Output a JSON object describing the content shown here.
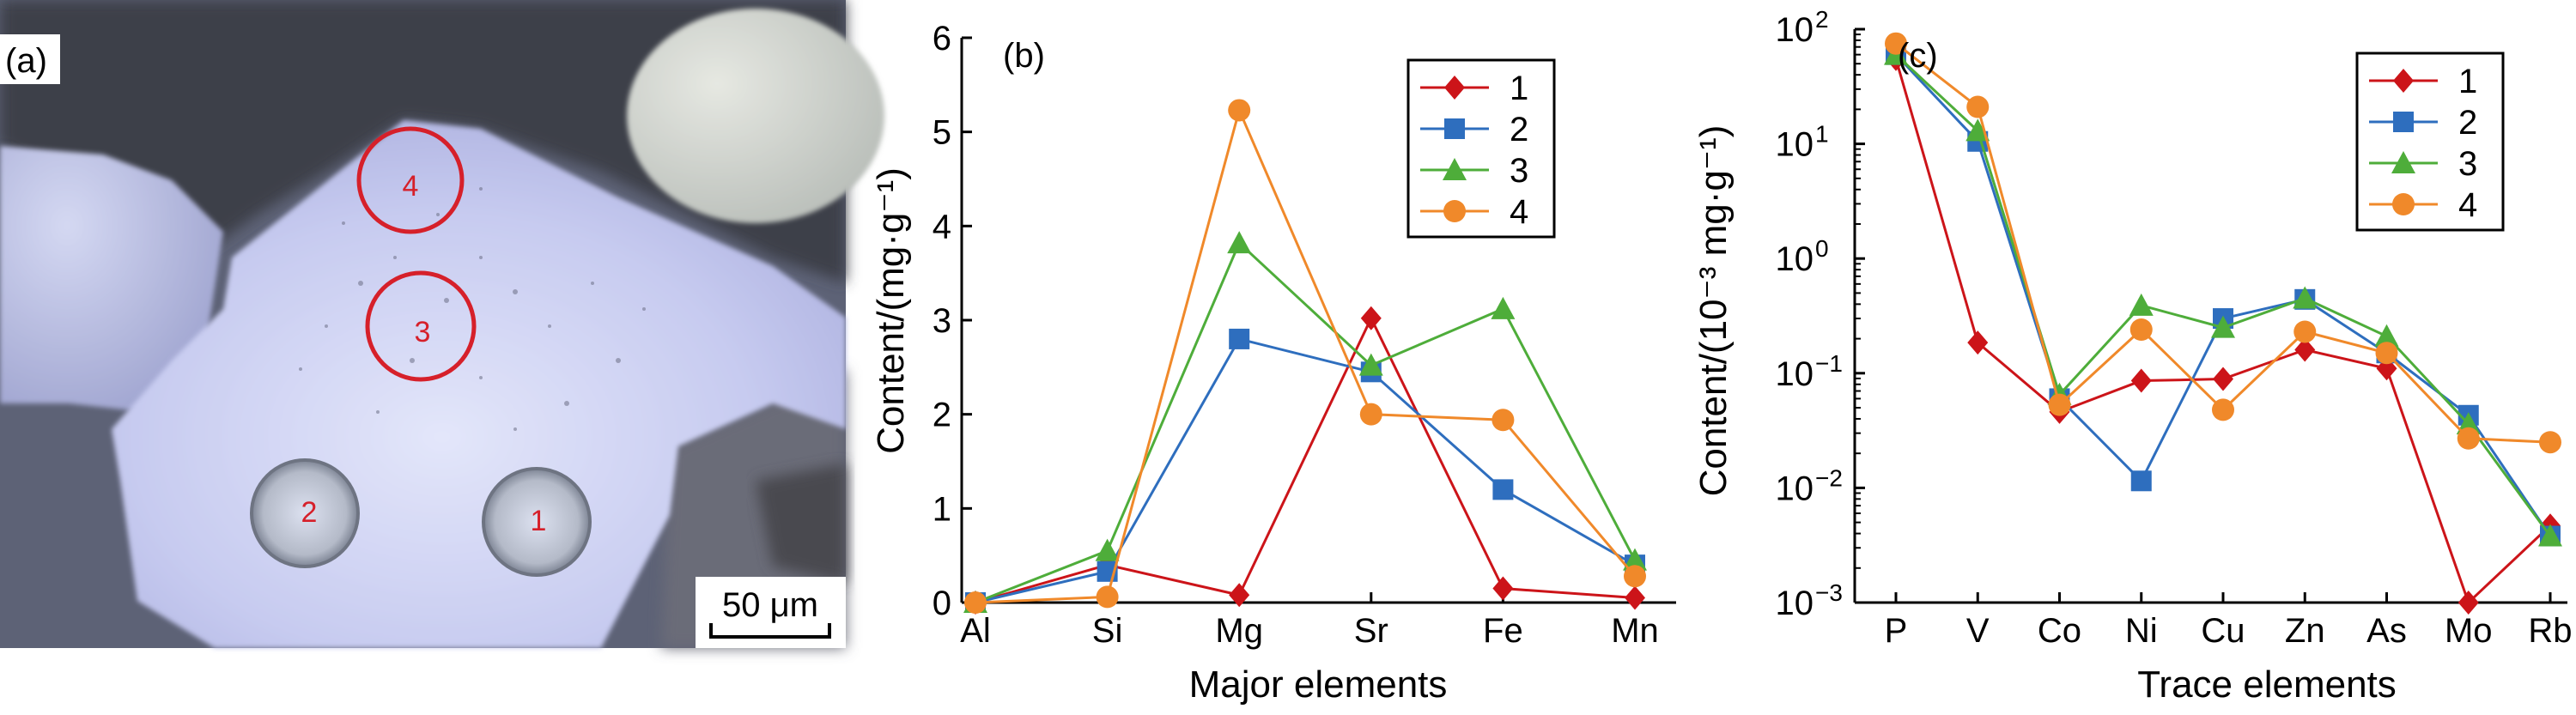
{
  "panel_a": {
    "label": "(a)",
    "scale_bar": "50 μm",
    "spot_labels": [
      "1",
      "2",
      "3",
      "4"
    ]
  },
  "chart_data": [
    {
      "panel": "(b)",
      "type": "line",
      "xlabel": "Major elements",
      "ylabel": "Content/(mg·g⁻¹)",
      "yscale": "linear",
      "ylim": [
        0,
        6
      ],
      "yticks": [
        0,
        1,
        2,
        3,
        4,
        5,
        6
      ],
      "ytick_labels": [
        "0",
        "1",
        "2",
        "3",
        "4",
        "5",
        "6"
      ],
      "categories": [
        "Al",
        "Si",
        "Mg",
        "Sr",
        "Fe",
        "Mn"
      ],
      "legend_position": "top-right",
      "series": [
        {
          "name": "1",
          "color": "#cc1419",
          "marker": "diamond",
          "values": [
            0.0,
            0.4,
            0.08,
            3.02,
            0.15,
            0.05
          ]
        },
        {
          "name": "2",
          "color": "#2e6ebe",
          "marker": "square",
          "values": [
            0.0,
            0.33,
            2.8,
            2.45,
            1.2,
            0.4
          ]
        },
        {
          "name": "3",
          "color": "#4ead3a",
          "marker": "triangle",
          "values": [
            0.0,
            0.55,
            3.82,
            2.52,
            3.12,
            0.45
          ]
        },
        {
          "name": "4",
          "color": "#f0892a",
          "marker": "circle",
          "values": [
            0.0,
            0.06,
            5.23,
            2.0,
            1.94,
            0.28
          ]
        }
      ]
    },
    {
      "panel": "(c)",
      "type": "line",
      "xlabel": "Trace elements",
      "ylabel": "Content/(10⁻³ mg·g⁻¹)",
      "yscale": "log",
      "ylim": [
        0.001,
        100
      ],
      "yticks": [
        0.001,
        0.01,
        0.1,
        1,
        10,
        100
      ],
      "ytick_bases": [
        "10",
        "10",
        "10",
        "10",
        "10",
        "10"
      ],
      "ytick_exponents": [
        "−3",
        "−2",
        "−1",
        "0",
        "1",
        "2"
      ],
      "categories": [
        "P",
        "V",
        "Co",
        "Ni",
        "Cu",
        "Zn",
        "As",
        "Mo",
        "Rb"
      ],
      "legend_position": "top-right",
      "series": [
        {
          "name": "1",
          "color": "#cc1419",
          "marker": "diamond",
          "values": [
            55,
            0.185,
            0.046,
            0.086,
            0.089,
            0.16,
            0.11,
            0.001,
            0.0047
          ]
        },
        {
          "name": "2",
          "color": "#2e6ebe",
          "marker": "square",
          "values": [
            60,
            10.5,
            0.06,
            0.0115,
            0.3,
            0.44,
            0.15,
            0.043,
            0.0038
          ]
        },
        {
          "name": "3",
          "color": "#4ead3a",
          "marker": "triangle",
          "values": [
            60,
            13,
            0.065,
            0.39,
            0.25,
            0.45,
            0.21,
            0.036,
            0.0038
          ]
        },
        {
          "name": "4",
          "color": "#f0892a",
          "marker": "circle",
          "values": [
            75,
            21,
            0.053,
            0.24,
            0.048,
            0.23,
            0.15,
            0.027,
            0.025
          ]
        }
      ]
    }
  ]
}
